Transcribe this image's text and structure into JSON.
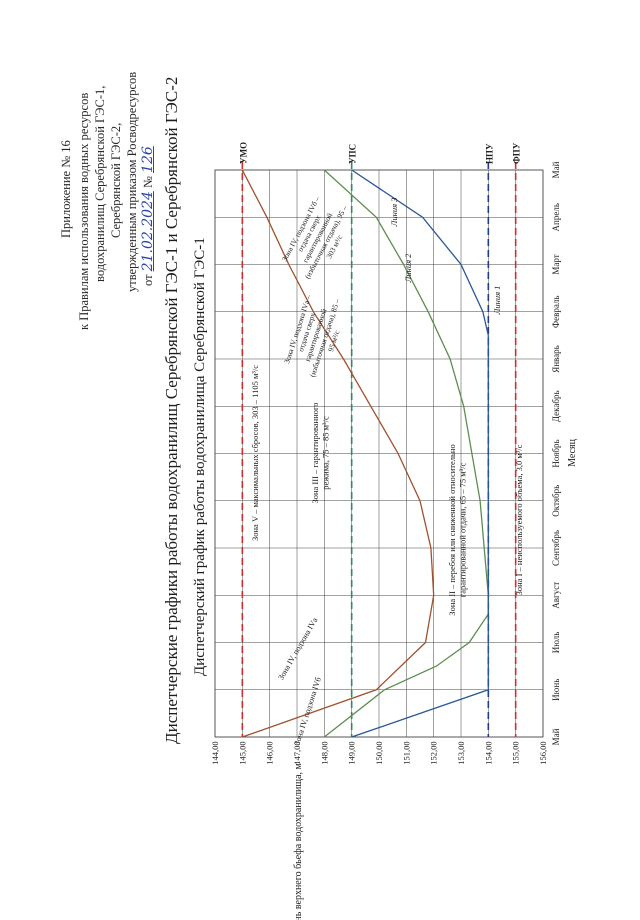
{
  "header": {
    "line1": "Приложение № 16",
    "line2": "к Правилам использования водных ресурсов",
    "line3": "водохранилищ Серебрянской ГЭС-1,",
    "line4": "Серебрянской ГЭС-2,",
    "line5": "утвержденным приказом Росводресурсов",
    "line6_prefix": "от",
    "line6_date": "21.02.2024",
    "line6_no": "№",
    "line6_number": "126"
  },
  "title": "Диспетчерские графики работы водохранилищ Серебрянской ГЭС-1 и Серебрянской ГЭС-2",
  "subtitle": "Диспетчерский график работы водохранилища Серебрянской ГЭС-1",
  "colors": {
    "line1": "#a0522d",
    "line2": "#5e8e4e",
    "line3": "#2a5698",
    "red_dash": "#d12f2f",
    "green_dash": "#2f8a5f",
    "blue_dash": "#1f3c8a",
    "grid": "#444444"
  },
  "chart_data": {
    "type": "line",
    "ylabel": "Уровень верхнего бьефа водохранилища, м",
    "xlabel": "Месяц",
    "categories": [
      "Май",
      "Июнь",
      "Июль",
      "Август",
      "Сентябрь",
      "Октябрь",
      "Ноябрь",
      "Декабрь",
      "Январь",
      "Февраль",
      "Март",
      "Апрель",
      "Май"
    ],
    "ylim": [
      144,
      156
    ],
    "yticks": [
      "144,00",
      "145,00",
      "146,00",
      "147,00",
      "148,00",
      "149,00",
      "150,00",
      "151,00",
      "152,00",
      "153,00",
      "154,00",
      "155,00",
      "156,00"
    ],
    "grid": true,
    "reference_levels": [
      {
        "name": "ФПУ",
        "value": 155.0,
        "style": "red-dash"
      },
      {
        "name": "НПУ",
        "value": 154.0,
        "style": "blue-dash"
      },
      {
        "name": "УПС",
        "value": 149.0,
        "style": "green-dash"
      },
      {
        "name": "УМО",
        "value": 145.0,
        "style": "red-dash"
      }
    ],
    "series": [
      {
        "name": "Линия 1",
        "color_key": "line1",
        "x": [
          0,
          1,
          2,
          3,
          4,
          5,
          6,
          7,
          8,
          9,
          10,
          11,
          12
        ],
        "values": [
          145.0,
          149.9,
          151.7,
          152.0,
          151.9,
          151.5,
          150.7,
          149.7,
          148.7,
          147.6,
          146.7,
          145.9,
          145.0
        ]
      },
      {
        "name": "Линия 2",
        "color_key": "line2",
        "x": [
          0,
          1,
          1.5,
          2,
          2.6,
          3,
          5,
          7,
          8,
          9,
          10,
          11,
          12
        ],
        "values": [
          148.0,
          150.2,
          152.1,
          153.3,
          154.0,
          154.0,
          153.7,
          153.1,
          152.6,
          151.8,
          150.9,
          149.9,
          148.0
        ]
      },
      {
        "name": "Линия 3",
        "color_key": "line3",
        "x": [
          0,
          1,
          2,
          3,
          7,
          8.5,
          9,
          10,
          11,
          12
        ],
        "values": [
          149.0,
          154.0,
          154.0,
          154.0,
          154.0,
          154.0,
          153.8,
          153.0,
          151.6,
          149.0
        ]
      }
    ],
    "zones": [
      {
        "label": "Зона V – максимальных сбросов, 303 – 1105 м³/с"
      },
      {
        "label": "Зона III – гарантированного режима, 75 – 85 м³/с"
      },
      {
        "label": "Зона II – перебоя или сниженной относительно гарантированной отдачи, 65 – 75 м³/с"
      },
      {
        "label": "Зона I – неиспользуемого объема, 3,0 м³/с"
      },
      {
        "label": "Зона IV, подзона IVб"
      },
      {
        "label": "Зона IV, подзона IVа"
      },
      {
        "label": "Зона IV, подзона IVа – отдача сверх гарантированной (избыточная отдача), 85 – 95 м³/с"
      },
      {
        "label": "Зона IV, подзона IVб – отдача сверх гарантированной (избыточная отдача), 95 – 303 м³/с"
      }
    ]
  }
}
